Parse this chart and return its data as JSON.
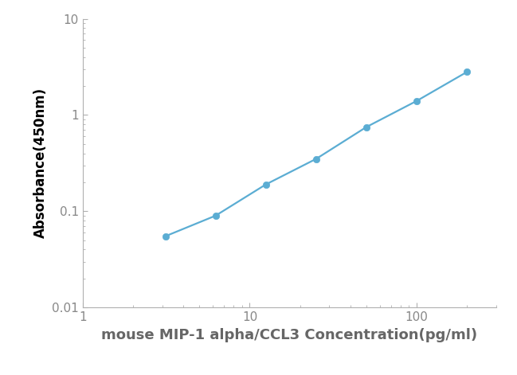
{
  "x": [
    3.125,
    6.25,
    12.5,
    25,
    50,
    100,
    200
  ],
  "y": [
    0.055,
    0.09,
    0.19,
    0.35,
    0.75,
    1.4,
    2.8
  ],
  "line_color": "#5badd3",
  "marker_color": "#5badd3",
  "marker_style": "o",
  "marker_size": 6,
  "line_width": 1.6,
  "xlabel": "mouse MIP-1 alpha/CCL3 Concentration(pg/ml)",
  "ylabel": "Absorbance(450nm)",
  "xlim": [
    1,
    300
  ],
  "ylim": [
    0.01,
    10
  ],
  "xlabel_fontsize": 13,
  "ylabel_fontsize": 12,
  "tick_fontsize": 11,
  "background_color": "#ffffff",
  "spine_color": "#b0b0b0",
  "tick_color": "#888888",
  "xlabel_color": "#666666",
  "ylabel_color": "#000000"
}
